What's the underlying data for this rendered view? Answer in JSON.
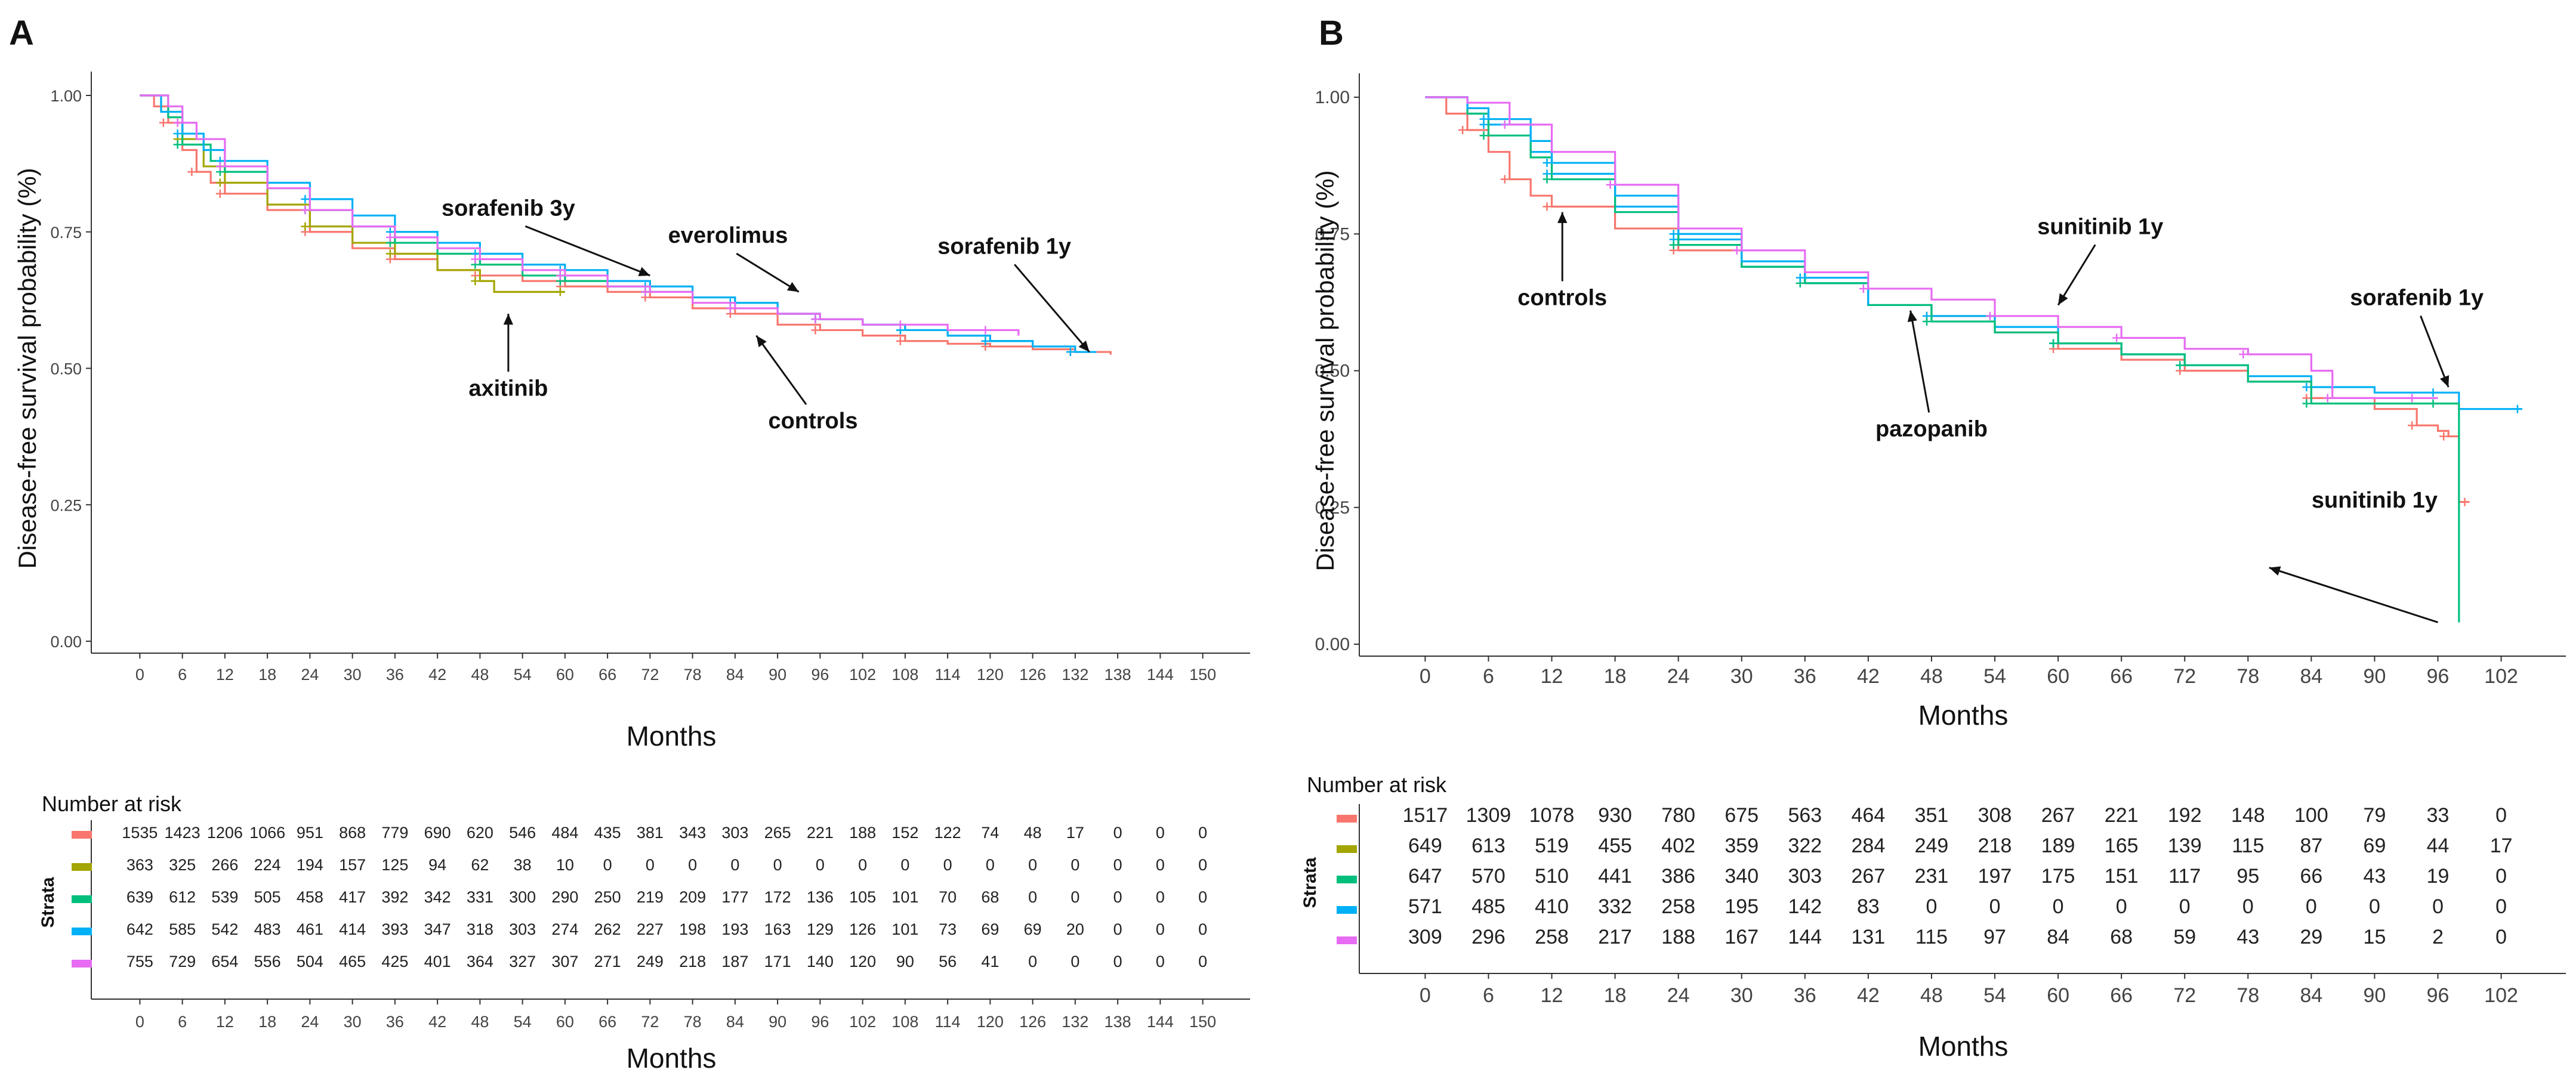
{
  "colors": {
    "controls": "#f8766d",
    "axitinib": "#a3a500",
    "everolimus": "#00bf7d",
    "sorafenib": "#00b0f6",
    "sunitinib": "#e76bf3"
  },
  "chart_data": [
    {
      "panel_label": "A",
      "type": "line",
      "subtype": "kaplan-meier",
      "title": "",
      "xlabel": "Months",
      "ylabel": "Disease-free survival probability (%)",
      "xlim": [
        -5,
        155
      ],
      "ylim": [
        0,
        1
      ],
      "x_ticks": [
        "0",
        "6",
        "12",
        "18",
        "24",
        "30",
        "36",
        "42",
        "48",
        "54",
        "60",
        "66",
        "72",
        "78",
        "84",
        "90",
        "96",
        "102",
        "108",
        "114",
        "120",
        "126",
        "132",
        "138",
        "144",
        "150"
      ],
      "y_ticks": [
        "0.00",
        "0.25",
        "0.50",
        "0.75",
        "1.00"
      ],
      "series": [
        {
          "key": "controls",
          "x": [
            0,
            2,
            4,
            6,
            8,
            10,
            12,
            18,
            24,
            30,
            36,
            42,
            48,
            54,
            60,
            66,
            72,
            78,
            84,
            90,
            96,
            102,
            108,
            114,
            120,
            126,
            132,
            137
          ],
          "y": [
            1,
            0.98,
            0.95,
            0.9,
            0.86,
            0.84,
            0.82,
            0.79,
            0.75,
            0.72,
            0.7,
            0.68,
            0.67,
            0.66,
            0.65,
            0.64,
            0.63,
            0.61,
            0.6,
            0.58,
            0.57,
            0.56,
            0.55,
            0.545,
            0.54,
            0.535,
            0.53,
            0.525
          ]
        },
        {
          "key": "axitinib",
          "x": [
            0,
            3,
            6,
            9,
            12,
            18,
            24,
            30,
            36,
            42,
            48,
            50,
            60
          ],
          "y": [
            1,
            0.97,
            0.92,
            0.87,
            0.84,
            0.8,
            0.76,
            0.73,
            0.71,
            0.68,
            0.66,
            0.64,
            0.64
          ]
        },
        {
          "key": "everolimus",
          "x": [
            0,
            4,
            6,
            10,
            12,
            18,
            24,
            30,
            36,
            42,
            48,
            54,
            60,
            66,
            72,
            78,
            84,
            90,
            96,
            102,
            108,
            114,
            120,
            126
          ],
          "y": [
            1,
            0.96,
            0.91,
            0.88,
            0.86,
            0.83,
            0.79,
            0.76,
            0.73,
            0.71,
            0.69,
            0.67,
            0.66,
            0.65,
            0.64,
            0.63,
            0.62,
            0.6,
            0.59,
            0.58,
            0.57,
            0.56,
            0.55,
            0.54
          ]
        },
        {
          "key": "sorafenib",
          "x": [
            0,
            3,
            6,
            9,
            12,
            18,
            24,
            30,
            36,
            42,
            48,
            54,
            60,
            66,
            72,
            78,
            84,
            90,
            96,
            102,
            108,
            114,
            120,
            126,
            132,
            135
          ],
          "y": [
            1,
            0.97,
            0.93,
            0.9,
            0.88,
            0.84,
            0.81,
            0.78,
            0.75,
            0.73,
            0.71,
            0.69,
            0.68,
            0.66,
            0.65,
            0.63,
            0.62,
            0.6,
            0.59,
            0.58,
            0.57,
            0.56,
            0.55,
            0.54,
            0.53,
            0.53
          ]
        },
        {
          "key": "sunitinib",
          "x": [
            0,
            4,
            6,
            8,
            12,
            18,
            24,
            30,
            36,
            42,
            48,
            54,
            60,
            66,
            72,
            78,
            84,
            90,
            96,
            102,
            108,
            114,
            120,
            124
          ],
          "y": [
            1,
            0.98,
            0.95,
            0.92,
            0.87,
            0.83,
            0.79,
            0.76,
            0.74,
            0.72,
            0.7,
            0.68,
            0.67,
            0.65,
            0.64,
            0.62,
            0.61,
            0.6,
            0.59,
            0.58,
            0.58,
            0.57,
            0.57,
            0.56
          ]
        }
      ],
      "annotations": [
        {
          "text": "sorafenib 3y",
          "tx": 52,
          "ty": 0.78,
          "ax": 72,
          "ay": 0.67
        },
        {
          "text": "everolimus",
          "tx": 83,
          "ty": 0.73,
          "ax": 93,
          "ay": 0.64
        },
        {
          "text": "sorafenib 1y",
          "tx": 122,
          "ty": 0.71,
          "ax": 134,
          "ay": 0.53
        },
        {
          "text": "axitinib",
          "tx": 52,
          "ty": 0.45,
          "ax": 52,
          "ay": 0.6
        },
        {
          "text": "controls",
          "tx": 95,
          "ty": 0.39,
          "ax": 87,
          "ay": 0.56
        }
      ],
      "risk_table": {
        "title": "Number at risk",
        "strata_label": "Strata",
        "x_ticks": [
          "0",
          "6",
          "12",
          "18",
          "24",
          "30",
          "36",
          "42",
          "48",
          "54",
          "60",
          "66",
          "72",
          "78",
          "84",
          "90",
          "96",
          "102",
          "108",
          "114",
          "120",
          "126",
          "132",
          "138",
          "144",
          "150"
        ],
        "xlabel": "Months",
        "rows": [
          {
            "key": "controls",
            "values": [
              "1535",
              "1423",
              "1206",
              "1066",
              "951",
              "868",
              "779",
              "690",
              "620",
              "546",
              "484",
              "435",
              "381",
              "343",
              "303",
              "265",
              "221",
              "188",
              "152",
              "122",
              "74",
              "48",
              "17",
              "0",
              "0",
              "0"
            ]
          },
          {
            "key": "axitinib",
            "values": [
              "363",
              "325",
              "266",
              "224",
              "194",
              "157",
              "125",
              "94",
              "62",
              "38",
              "10",
              "0",
              "0",
              "0",
              "0",
              "0",
              "0",
              "0",
              "0",
              "0",
              "0",
              "0",
              "0",
              "0",
              "0",
              "0"
            ]
          },
          {
            "key": "everolimus",
            "values": [
              "639",
              "612",
              "539",
              "505",
              "458",
              "417",
              "392",
              "342",
              "331",
              "300",
              "290",
              "250",
              "219",
              "209",
              "177",
              "172",
              "136",
              "105",
              "101",
              "70",
              "68",
              "0",
              "0",
              "0",
              "0",
              "0"
            ]
          },
          {
            "key": "sorafenib",
            "values": [
              "642",
              "585",
              "542",
              "483",
              "461",
              "414",
              "393",
              "347",
              "318",
              "303",
              "274",
              "262",
              "227",
              "198",
              "193",
              "163",
              "129",
              "126",
              "101",
              "73",
              "69",
              "69",
              "20",
              "0",
              "0",
              "0"
            ]
          },
          {
            "key": "sunitinib",
            "values": [
              "755",
              "729",
              "654",
              "556",
              "504",
              "465",
              "425",
              "401",
              "364",
              "327",
              "307",
              "271",
              "249",
              "218",
              "187",
              "171",
              "140",
              "120",
              "90",
              "56",
              "41",
              "0",
              "0",
              "0",
              "0",
              "0"
            ]
          }
        ]
      }
    },
    {
      "panel_label": "B",
      "type": "line",
      "subtype": "kaplan-meier",
      "title": "",
      "xlabel": "Months",
      "ylabel": "Disease-free survival probability (%)",
      "xlim": [
        -5,
        107
      ],
      "ylim": [
        0,
        1
      ],
      "x_ticks": [
        "0",
        "6",
        "12",
        "18",
        "24",
        "30",
        "36",
        "42",
        "48",
        "54",
        "60",
        "66",
        "72",
        "78",
        "84",
        "90",
        "96",
        "102"
      ],
      "y_ticks": [
        "0.00",
        "0.25",
        "0.50",
        "0.75",
        "1.00"
      ],
      "series": [
        {
          "key": "controls",
          "x": [
            0,
            2,
            4,
            6,
            8,
            10,
            12,
            18,
            24,
            30,
            36,
            42,
            48,
            54,
            60,
            66,
            72,
            78,
            84,
            90,
            94,
            96,
            97,
            98,
            99
          ],
          "y": [
            1,
            0.97,
            0.94,
            0.9,
            0.85,
            0.82,
            0.8,
            0.76,
            0.72,
            0.69,
            0.66,
            0.62,
            0.6,
            0.57,
            0.54,
            0.52,
            0.5,
            0.48,
            0.45,
            0.43,
            0.4,
            0.39,
            0.38,
            0.26,
            0.26
          ]
        },
        {
          "key": "sorafenib",
          "x": [
            0,
            4,
            6,
            10,
            12,
            18,
            24,
            30,
            36,
            42,
            48,
            54,
            60,
            66,
            72,
            78,
            84,
            90,
            96,
            98,
            104
          ],
          "y": [
            1,
            0.97,
            0.95,
            0.9,
            0.86,
            0.8,
            0.74,
            0.69,
            0.66,
            0.62,
            0.6,
            0.58,
            0.55,
            0.53,
            0.51,
            0.49,
            0.47,
            0.46,
            0.46,
            0.43,
            0.43
          ]
        },
        {
          "key": "pazopanib",
          "x": [
            0,
            4,
            6,
            10,
            12,
            18,
            24,
            30,
            36,
            42,
            48,
            54,
            60,
            66,
            72,
            78,
            84,
            90,
            96,
            98
          ],
          "y": [
            1,
            0.97,
            0.93,
            0.89,
            0.85,
            0.79,
            0.73,
            0.69,
            0.66,
            0.62,
            0.59,
            0.57,
            0.55,
            0.53,
            0.51,
            0.48,
            0.44,
            0.44,
            0.44,
            0.04
          ]
        },
        {
          "key": "sorafenib3",
          "x": [
            0,
            4,
            6,
            10,
            12,
            18,
            24,
            30,
            36,
            42
          ],
          "y": [
            1,
            0.98,
            0.96,
            0.92,
            0.88,
            0.82,
            0.75,
            0.7,
            0.67,
            0.62
          ]
        },
        {
          "key": "sunitinib",
          "x": [
            0,
            4,
            8,
            12,
            18,
            24,
            30,
            36,
            42,
            48,
            54,
            60,
            66,
            72,
            78,
            84,
            86,
            90,
            94,
            96
          ],
          "y": [
            1,
            0.99,
            0.95,
            0.9,
            0.84,
            0.76,
            0.72,
            0.68,
            0.65,
            0.63,
            0.6,
            0.58,
            0.56,
            0.54,
            0.53,
            0.5,
            0.45,
            0.45,
            0.45,
            0.45
          ]
        }
      ],
      "annotations": [
        {
          "text": "controls",
          "tx": 13,
          "ty": 0.62,
          "ax": 13,
          "ay": 0.79
        },
        {
          "text": "sunitinib 1y",
          "tx": 64,
          "ty": 0.75,
          "ax": 60,
          "ay": 0.62
        },
        {
          "text": "pazopanib",
          "tx": 48,
          "ty": 0.38,
          "ax": 46,
          "ay": 0.61
        },
        {
          "text": "sorafenib 1y",
          "tx": 94,
          "ty": 0.62,
          "ax": 97,
          "ay": 0.47
        },
        {
          "text": "sunitinib 1y",
          "tx": 90,
          "ty": 0.25,
          "ax": 80,
          "ay": 0.14,
          "line_to": [
            96,
            0.04
          ]
        }
      ],
      "risk_table": {
        "title": "Number at risk",
        "strata_label": "Strata",
        "x_ticks": [
          "0",
          "6",
          "12",
          "18",
          "24",
          "30",
          "36",
          "42",
          "48",
          "54",
          "60",
          "66",
          "72",
          "78",
          "84",
          "90",
          "96",
          "102"
        ],
        "xlabel": "Months",
        "rows": [
          {
            "key": "controls",
            "values": [
              "1517",
              "1309",
              "1078",
              "930",
              "780",
              "675",
              "563",
              "464",
              "351",
              "308",
              "267",
              "221",
              "192",
              "148",
              "100",
              "79",
              "33",
              "0"
            ]
          },
          {
            "key": "axitinib",
            "values": [
              "649",
              "613",
              "519",
              "455",
              "402",
              "359",
              "322",
              "284",
              "249",
              "218",
              "189",
              "165",
              "139",
              "115",
              "87",
              "69",
              "44",
              "17"
            ]
          },
          {
            "key": "everolimus",
            "values": [
              "647",
              "570",
              "510",
              "441",
              "386",
              "340",
              "303",
              "267",
              "231",
              "197",
              "175",
              "151",
              "117",
              "95",
              "66",
              "43",
              "19",
              "0"
            ]
          },
          {
            "key": "sorafenib",
            "values": [
              "571",
              "485",
              "410",
              "332",
              "258",
              "195",
              "142",
              "83",
              "0",
              "0",
              "0",
              "0",
              "0",
              "0",
              "0",
              "0",
              "0",
              "0"
            ]
          },
          {
            "key": "sunitinib",
            "values": [
              "309",
              "296",
              "258",
              "217",
              "188",
              "167",
              "144",
              "131",
              "115",
              "97",
              "84",
              "68",
              "59",
              "43",
              "29",
              "15",
              "2",
              "0"
            ]
          }
        ]
      }
    }
  ]
}
